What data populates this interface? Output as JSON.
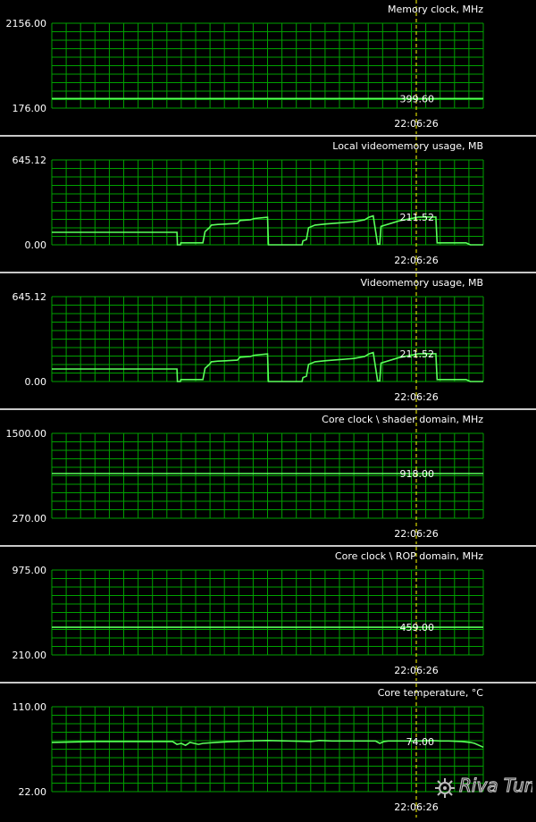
{
  "colors": {
    "background": "#000000",
    "grid": "#00a000",
    "series": "#5aff5a",
    "text": "#ffffff",
    "marker": "#ffff00",
    "separator": "#c8c8c8"
  },
  "marker_time": "22:06:26",
  "watermark": {
    "text": "Riva Tuner"
  },
  "chart_data": [
    {
      "type": "line",
      "title": "Memory clock, MHz",
      "ylim": [
        176.0,
        2156.0
      ],
      "ymax_label": "2156.00",
      "ymin_label": "176.00",
      "current_label": "399.60",
      "time_label": "22:06:26",
      "x": [
        0,
        100
      ],
      "values": [
        399.6,
        399.6
      ]
    },
    {
      "type": "line",
      "title": "Local videomemory usage, MB",
      "ylim": [
        0.0,
        645.12
      ],
      "ymax_label": "645.12",
      "ymin_label": "0.00",
      "current_label": "211.52",
      "time_label": "22:06:26",
      "x": [
        0,
        29.0,
        29.1,
        29.8,
        29.9,
        35.0,
        35.5,
        36.5,
        37.0,
        38.5,
        43.0,
        43.6,
        46.0,
        47.0,
        50.0,
        50.2,
        58.0,
        58.2,
        59.0,
        59.5,
        61.0,
        63.5,
        68.0,
        70.0,
        72.5,
        73.0,
        73.5,
        74.5,
        75.5,
        76.0,
        76.3,
        80.5,
        85.0,
        88.5,
        89.0,
        89.3,
        96.0,
        97.0,
        98.0,
        100
      ],
      "values": [
        95,
        95,
        0,
        0,
        15,
        15,
        100,
        130,
        150,
        155,
        162,
        185,
        190,
        200,
        210,
        0,
        0,
        30,
        40,
        130,
        150,
        158,
        170,
        175,
        190,
        200,
        210,
        220,
        5,
        5,
        140,
        182,
        211,
        211,
        211,
        15,
        15,
        0,
        0,
        0
      ]
    },
    {
      "type": "line",
      "title": "Videomemory usage, MB",
      "ylim": [
        0.0,
        645.12
      ],
      "ymax_label": "645.12",
      "ymin_label": "0.00",
      "current_label": "211.52",
      "time_label": "22:06:26",
      "x": [
        0,
        29.0,
        29.1,
        29.8,
        29.9,
        35.0,
        35.5,
        36.5,
        37.0,
        38.5,
        43.0,
        43.6,
        46.0,
        47.0,
        50.0,
        50.2,
        58.0,
        58.2,
        59.0,
        59.5,
        61.0,
        63.5,
        68.0,
        70.0,
        72.5,
        73.0,
        73.5,
        74.5,
        75.5,
        76.0,
        76.3,
        80.5,
        85.0,
        88.5,
        89.0,
        89.3,
        96.0,
        97.0,
        98.0,
        100
      ],
      "values": [
        95,
        95,
        0,
        0,
        15,
        15,
        100,
        130,
        150,
        155,
        162,
        185,
        190,
        200,
        210,
        0,
        0,
        30,
        40,
        130,
        150,
        158,
        170,
        175,
        190,
        200,
        210,
        220,
        5,
        5,
        140,
        182,
        211,
        211,
        211,
        15,
        15,
        0,
        0,
        0
      ]
    },
    {
      "type": "line",
      "title": "Core clock \\ shader domain, MHz",
      "ylim": [
        270.0,
        1500.0
      ],
      "ymax_label": "1500.00",
      "ymin_label": "270.00",
      "current_label": "918.00",
      "time_label": "22:06:26",
      "x": [
        0,
        100
      ],
      "values": [
        918.0,
        918.0
      ]
    },
    {
      "type": "line",
      "title": "Core clock \\ ROP domain, MHz",
      "ylim": [
        210.0,
        975.0
      ],
      "ymax_label": "975.00",
      "ymin_label": "210.00",
      "current_label": "459.00",
      "time_label": "22:06:26",
      "x": [
        0,
        100
      ],
      "values": [
        459.0,
        459.0
      ]
    },
    {
      "type": "line",
      "title": "Core temperature, °C",
      "ylim": [
        22.0,
        110.0
      ],
      "ymax_label": "110.00",
      "ymin_label": "22.00",
      "current_label": "74.00",
      "time_label": "22:06:26",
      "x": [
        0,
        5,
        10,
        15,
        20,
        25,
        28,
        29,
        30,
        31,
        32,
        33,
        34,
        35,
        38,
        42,
        45,
        50,
        55,
        60,
        62,
        65,
        70,
        75,
        76,
        77,
        78,
        80,
        85,
        88,
        90,
        92,
        95,
        97,
        98,
        99,
        100
      ],
      "values": [
        73,
        73.5,
        74,
        74,
        74,
        74,
        74,
        71,
        72,
        70,
        73,
        72,
        71,
        72,
        73,
        74,
        74.5,
        75,
        74.5,
        74,
        75,
        74.5,
        74.5,
        74.5,
        72,
        74,
        74.5,
        74.5,
        74.5,
        75,
        74.5,
        74.5,
        74,
        73,
        72,
        70,
        68
      ]
    }
  ]
}
